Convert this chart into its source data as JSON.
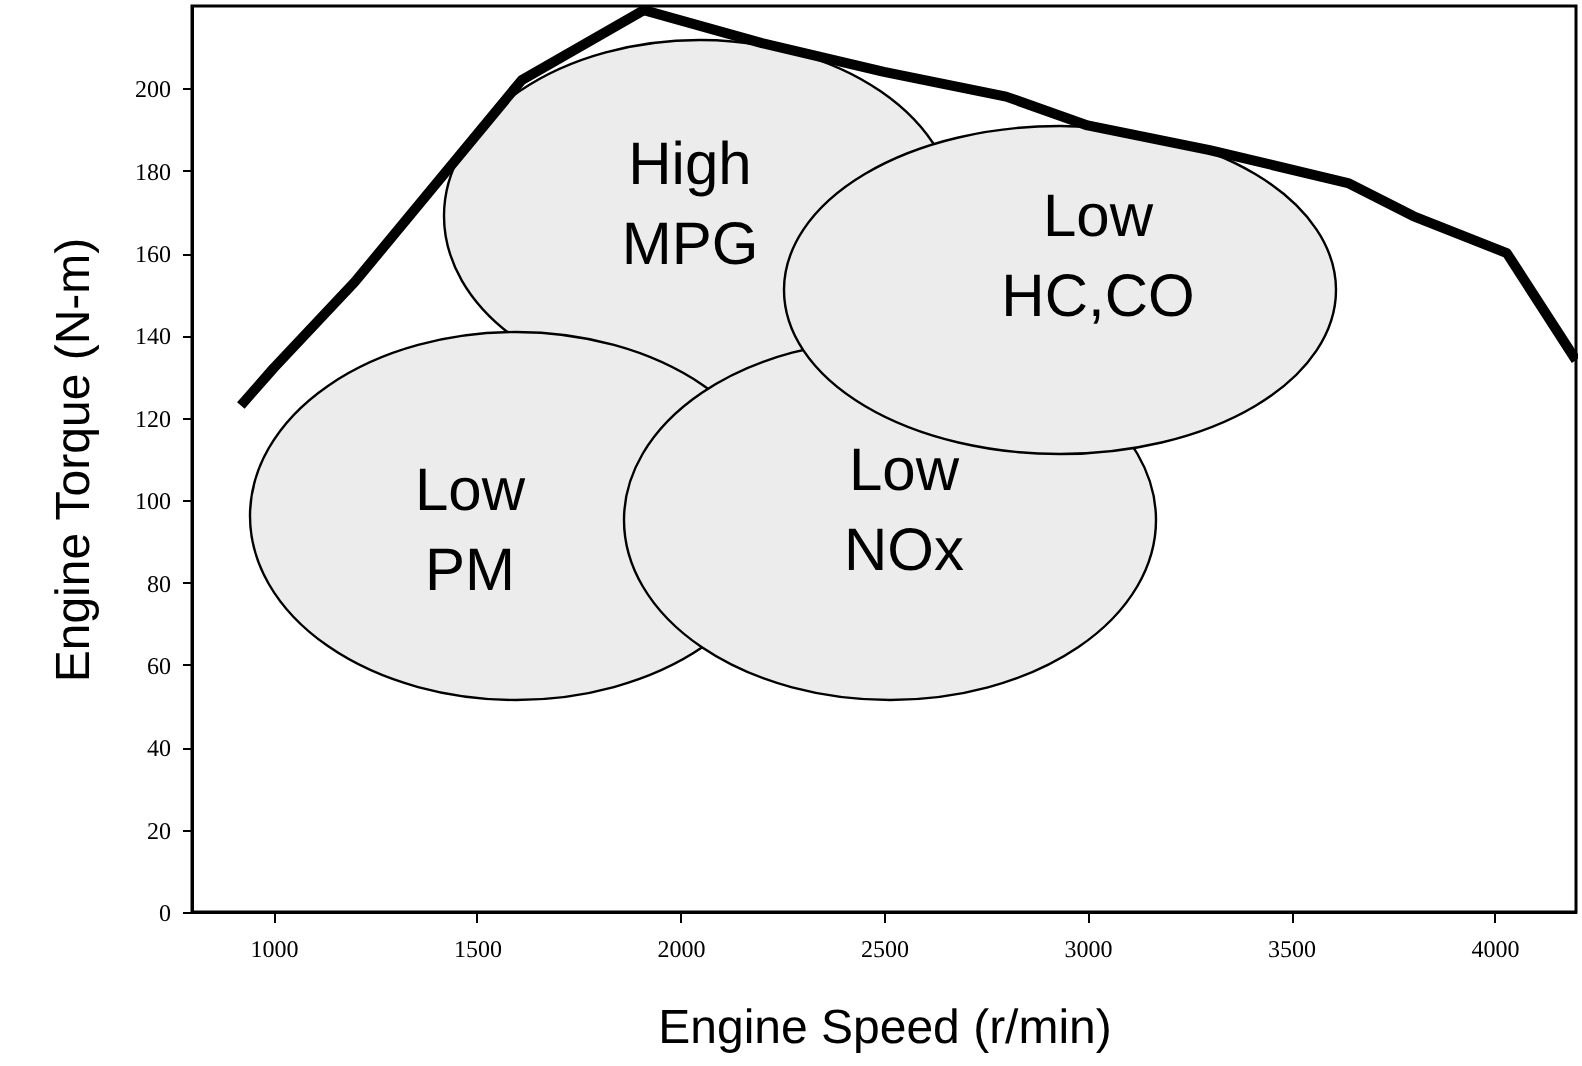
{
  "chart_data": {
    "type": "line",
    "xlabel": "Engine Speed (r/min)",
    "ylabel": "Engine Torque (N-m)",
    "x": [
      920,
      1000,
      1200,
      1610,
      1910,
      2200,
      2500,
      2800,
      3000,
      3300,
      3640,
      3800,
      4030,
      4200
    ],
    "series": [
      {
        "color": "#000000",
        "values": [
          123,
          132,
          153,
          202,
          219,
          211,
          204,
          198,
          191,
          185,
          177,
          169,
          160,
          134
        ]
      }
    ],
    "xlim": [
      800,
      4200
    ],
    "xticks": [
      1000,
      1500,
      2000,
      2500,
      3000,
      3500,
      4000
    ],
    "ylim": [
      0,
      220
    ],
    "yticks": [
      0,
      20,
      40,
      60,
      80,
      100,
      120,
      140,
      160,
      180,
      200
    ],
    "grid": false,
    "marker": "none",
    "line_style": "solid",
    "annotations": [
      "High\nMPG",
      "Low\nHC,CO",
      "Low\nPM",
      "Low\nNOx"
    ]
  }
}
